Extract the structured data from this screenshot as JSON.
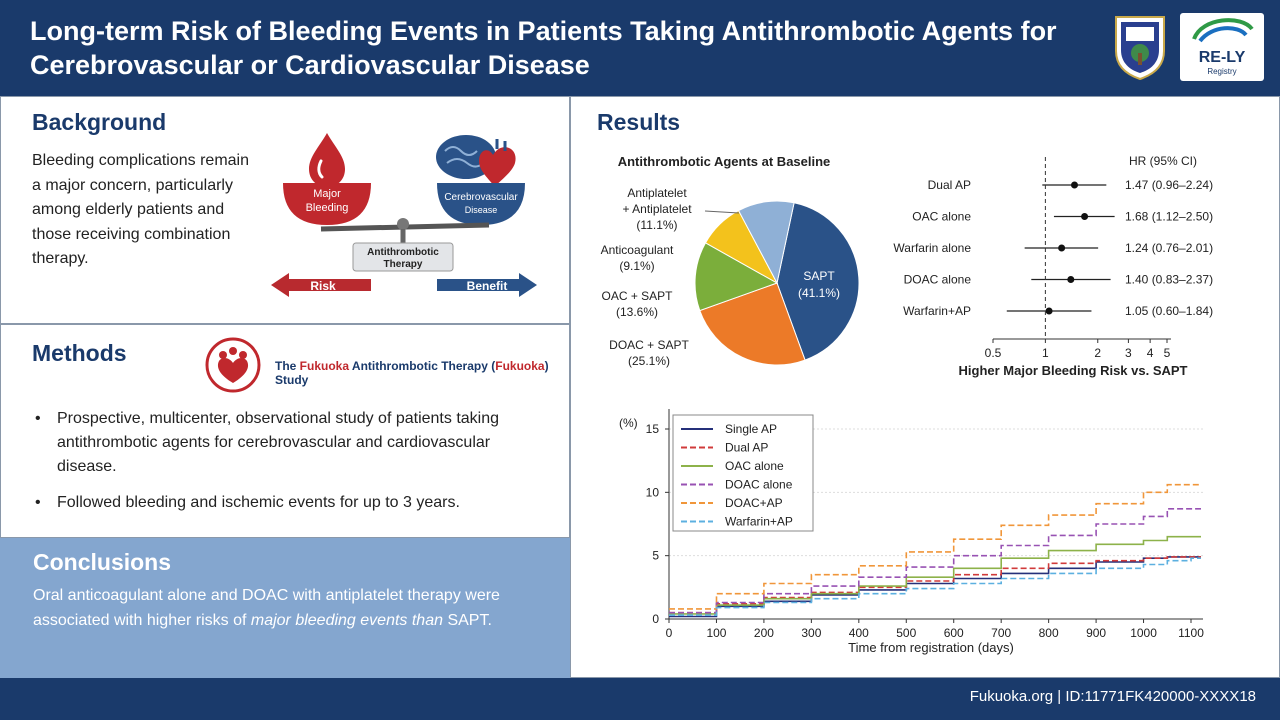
{
  "header": {
    "title": "Long-term Risk of Bleeding Events in Patients Taking Antithrombotic Agents for Cerebrovascular or Cardiovascular Disease",
    "logo_rely": "RE-LY",
    "logo_registry": "Registry"
  },
  "background": {
    "title": "Background",
    "text": "Bleeding complications remain a major concern, particularly among elderly patients and those receiving combination therapy.",
    "scale": {
      "left_l1": "Major",
      "left_l2": "Bleeding",
      "right_l1": "Cerebrovascular",
      "right_l2": "Disease",
      "center_l1": "Antithrombotic",
      "center_l2": "Therapy",
      "risk": "Risk",
      "benefit": "Benefit"
    }
  },
  "methods": {
    "title": "Methods",
    "study": {
      "p1": "The ",
      "p2": "Fukuoka",
      "p3": " Antithrombotic Therapy (",
      "p4": "Fukuoka",
      "p5": ") Study"
    },
    "bullets": [
      "Prospective, multicenter, observational study of patients taking antithrombotic agents for cerebrovascular and cardiovascular disease.",
      "Followed bleeding and ischemic events for up to 3 years."
    ]
  },
  "conclusions": {
    "title": "Conclusions",
    "text_part1": "Oral anticoagulant alone and DOAC with antiplatelet therapy were associated with higher risks of ",
    "text_em": "major bleeding events than",
    "text_part2": " SAPT."
  },
  "results": {
    "title": "Results"
  },
  "footer": {
    "text": "Fukuoka.org  |  ID:11771FK420000-XXXX18"
  },
  "colors": {
    "navy": "#1a3a6b",
    "red": "#c0282d",
    "light_blue": "#84a6cf",
    "pie": [
      "#2a5288",
      "#ec7a28",
      "#7bae3b",
      "#f3c21c",
      "#8fb0d6"
    ],
    "km": [
      "#25307a",
      "#d03b3b",
      "#8db24a",
      "#9852b3",
      "#f0963a",
      "#5cb0e0"
    ]
  },
  "chart_data": [
    {
      "type": "pie",
      "title": "Antithrombotic Agents at Baseline",
      "slices": [
        {
          "label_l1": "SAPT",
          "label_l2": "(41.1%)",
          "value": 41.1
        },
        {
          "label_l1": "DOAC + SAPT",
          "label_l2": "(25.1%)",
          "value": 25.1
        },
        {
          "label_l1": "OAC + SAPT",
          "label_l2": "(13.6%)",
          "value": 13.6
        },
        {
          "label_l1": "Anticoagulant",
          "label_l2": "(9.1%)",
          "value": 9.1
        },
        {
          "label_l1": "Antiplatelet",
          "label_l1b": "+ Antiplatelet",
          "label_l2": "(11.1%)",
          "value": 11.1
        }
      ]
    },
    {
      "type": "forest",
      "col_header": "HR (95% CI)",
      "xlabel": "Higher Major Bleeding Risk vs. SAPT",
      "xscale": "log",
      "xlim": [
        0.5,
        5
      ],
      "ticks": [
        "0.5",
        "1",
        "2",
        "3",
        "4",
        "5"
      ],
      "tick_values": [
        0.5,
        1,
        2,
        3,
        4,
        5
      ],
      "reference": 1,
      "rows": [
        {
          "label": "Dual AP",
          "hr": 1.47,
          "lo": 0.96,
          "hi": 2.24,
          "text": "1.47 (0.96–2.24)"
        },
        {
          "label": "OAC alone",
          "hr": 1.68,
          "lo": 1.12,
          "hi": 2.5,
          "text": "1.68 (1.12–2.50)"
        },
        {
          "label": "Warfarin alone",
          "hr": 1.24,
          "lo": 0.76,
          "hi": 2.01,
          "text": "1.24 (0.76–2.01)"
        },
        {
          "label": "DOAC alone",
          "hr": 1.4,
          "lo": 0.83,
          "hi": 2.37,
          "text": "1.40 (0.83–2.37)"
        },
        {
          "label": "Warfarin+AP",
          "hr": 1.05,
          "lo": 0.6,
          "hi": 1.84,
          "text": "1.05 (0.60–1.84)"
        }
      ]
    },
    {
      "type": "line",
      "ylabel": "(%)",
      "xlabel": "Time from registration (days)",
      "xlim": [
        0,
        1100
      ],
      "ylim": [
        0,
        15
      ],
      "xticks": [
        "0",
        "100",
        "200",
        "300",
        "400",
        "500",
        "600",
        "700",
        "800",
        "900",
        "1000",
        "1100"
      ],
      "yticks": [
        "0",
        "5",
        "10",
        "15"
      ],
      "grid": true,
      "legend": "top-left",
      "x": [
        0,
        100,
        200,
        300,
        400,
        500,
        600,
        700,
        800,
        900,
        1000,
        1050,
        1100
      ],
      "series": [
        {
          "name": "Single AP",
          "dashed": false,
          "values": [
            0.2,
            1.0,
            1.4,
            1.9,
            2.3,
            2.8,
            3.2,
            3.6,
            4.0,
            4.5,
            4.8,
            4.9,
            4.9
          ]
        },
        {
          "name": "Dual AP",
          "dashed": true,
          "values": [
            0.5,
            1.2,
            1.7,
            2.1,
            2.5,
            3.0,
            3.5,
            4.0,
            4.4,
            4.6,
            4.8,
            4.9,
            4.9
          ]
        },
        {
          "name": "OAC alone",
          "dashed": false,
          "values": [
            0.4,
            1.1,
            1.6,
            2.0,
            2.6,
            3.3,
            4.0,
            4.8,
            5.4,
            5.9,
            6.2,
            6.5,
            6.5
          ]
        },
        {
          "name": "DOAC alone",
          "dashed": true,
          "values": [
            0.5,
            1.3,
            2.0,
            2.6,
            3.3,
            4.1,
            5.0,
            5.8,
            6.6,
            7.5,
            8.1,
            8.7,
            8.7
          ]
        },
        {
          "name": "DOAC+AP",
          "dashed": true,
          "values": [
            0.8,
            2.0,
            2.8,
            3.5,
            4.2,
            5.3,
            6.3,
            7.4,
            8.2,
            9.1,
            10.0,
            10.6,
            10.6
          ]
        },
        {
          "name": "Warfarin+AP",
          "dashed": true,
          "values": [
            0.3,
            0.9,
            1.3,
            1.6,
            2.0,
            2.4,
            2.8,
            3.2,
            3.6,
            4.0,
            4.3,
            4.6,
            4.8
          ]
        }
      ]
    }
  ]
}
